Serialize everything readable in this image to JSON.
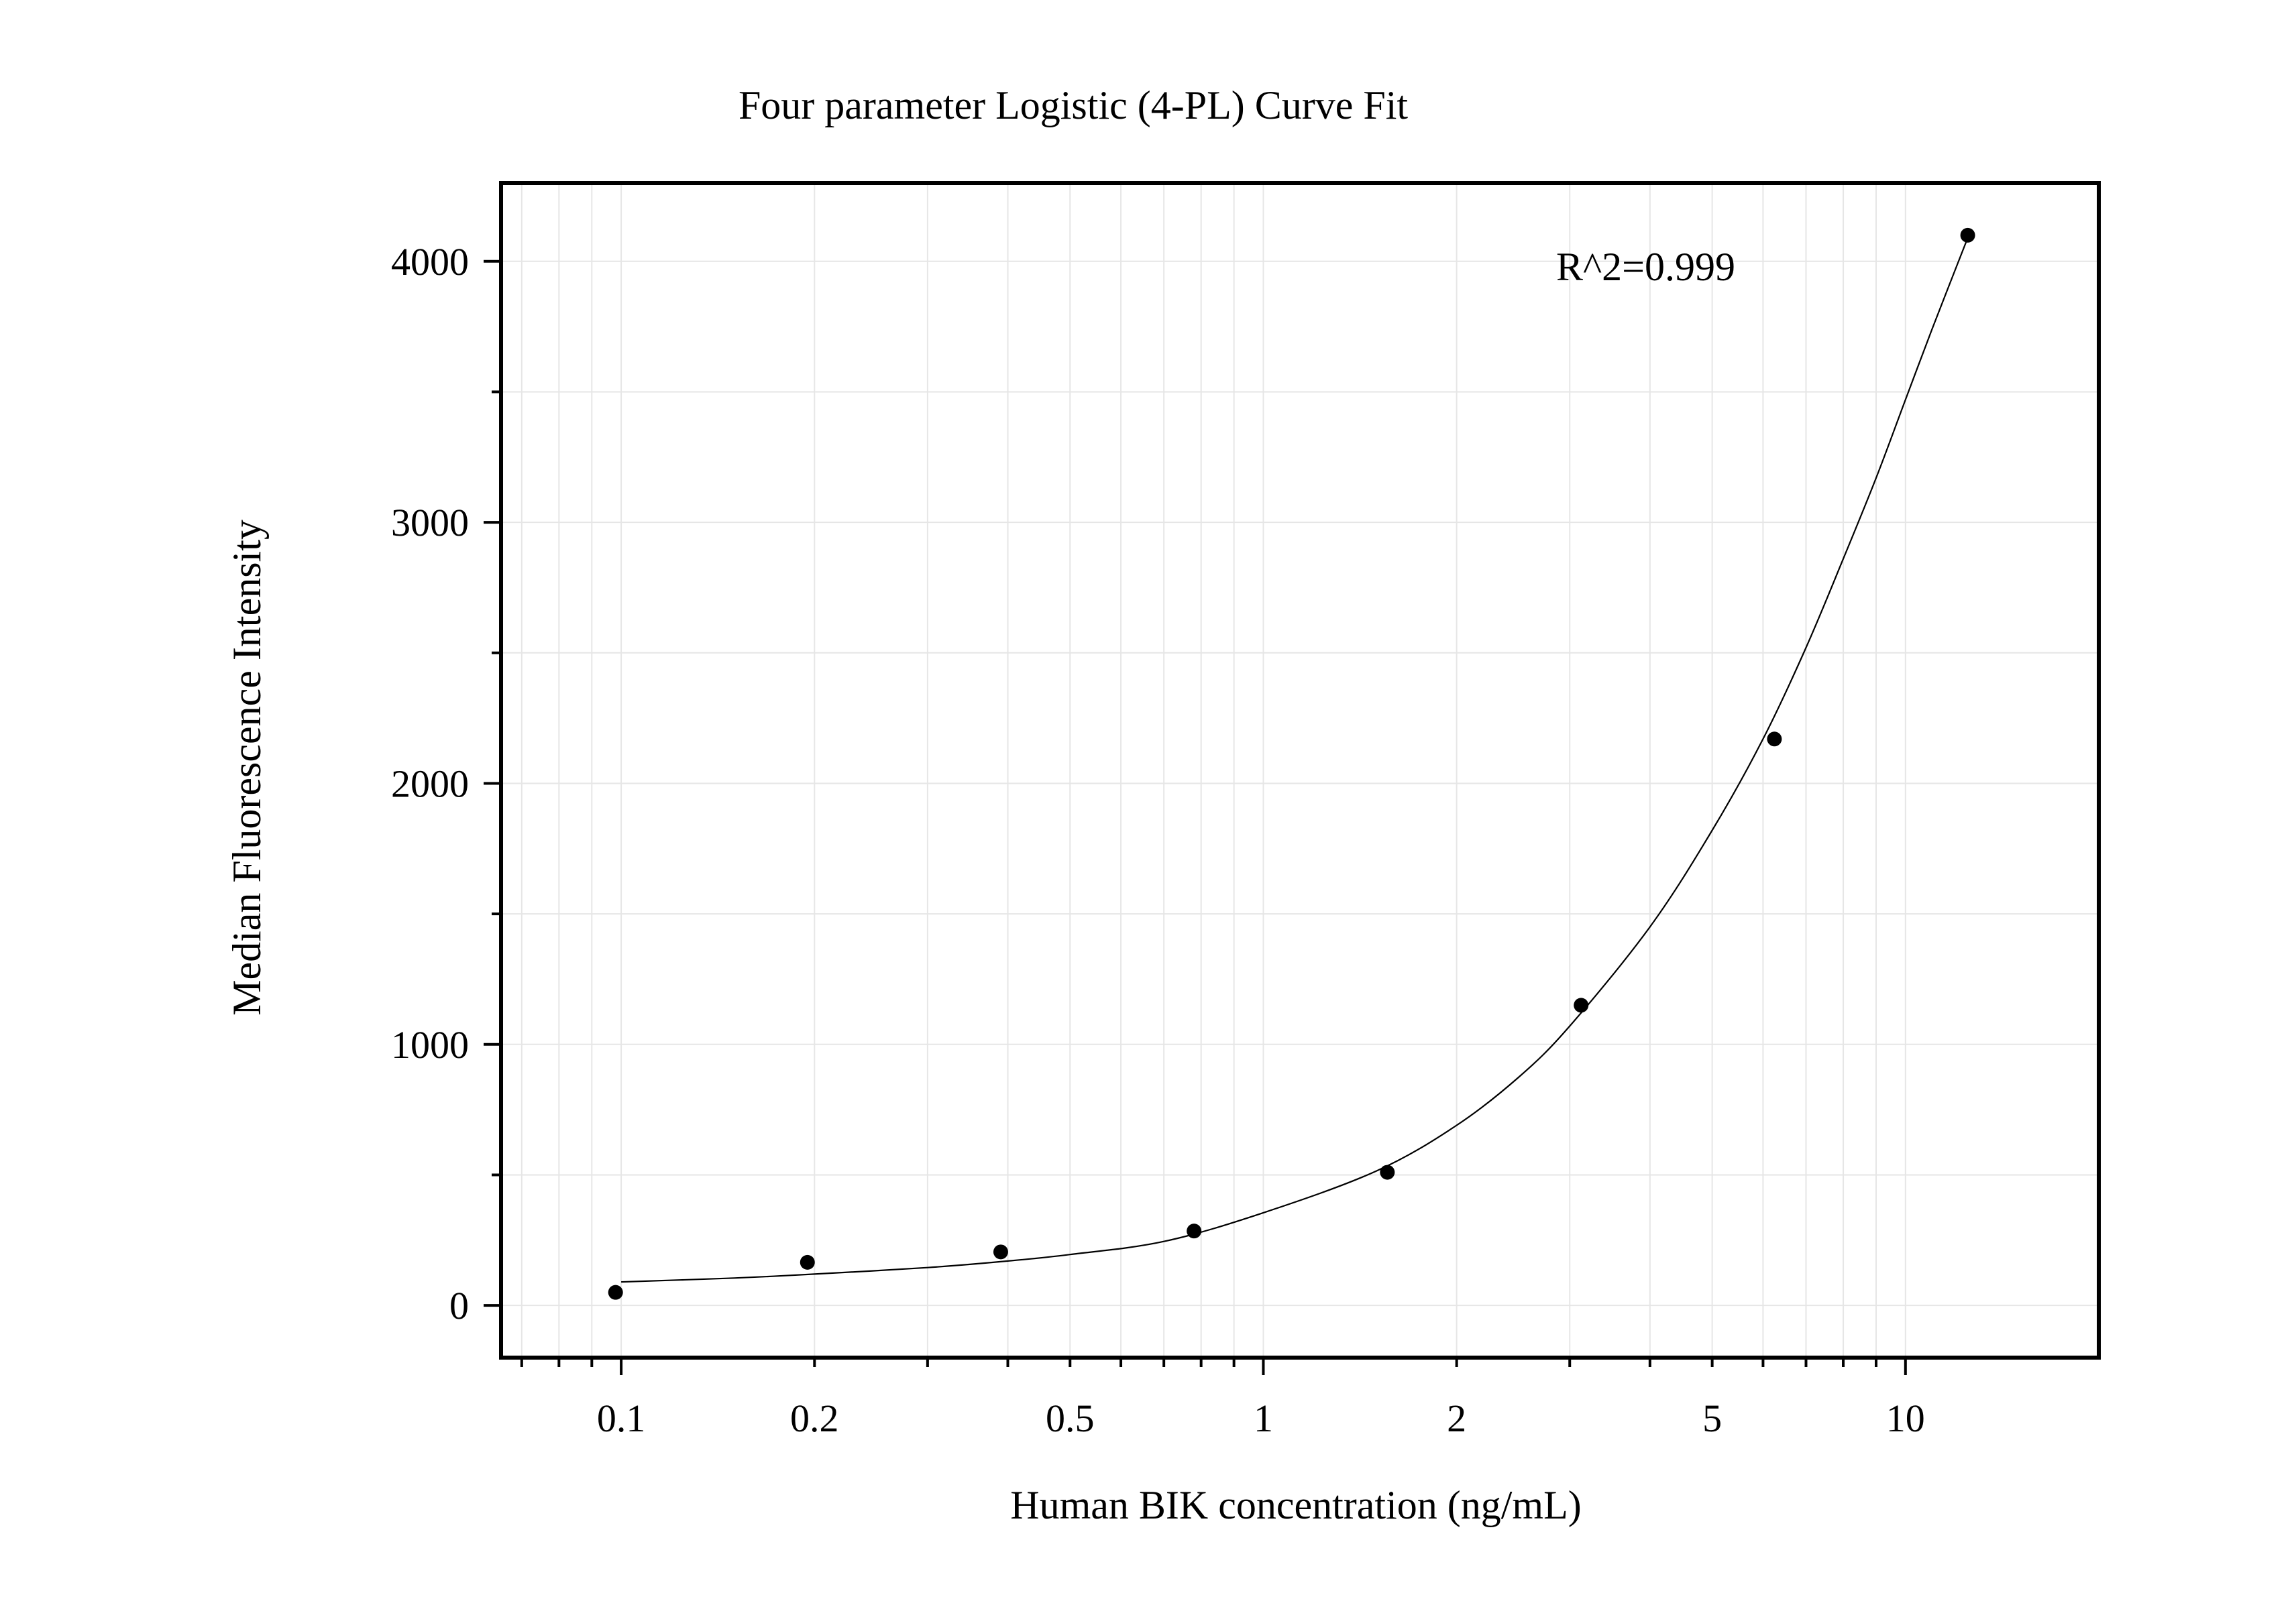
{
  "chart_data": {
    "type": "scatter",
    "title": "Four parameter Logistic (4-PL) Curve Fit",
    "xlabel": "Human BIK concentration (ng/mL)",
    "ylabel": "Median Fluorescence Intensity",
    "x_scale": "log",
    "xlim": [
      0.065,
      20
    ],
    "ylim": [
      -200,
      4300
    ],
    "x_ticks": [
      {
        "value": 0.1,
        "label": "0.1"
      },
      {
        "value": 0.2,
        "label": "0.2"
      },
      {
        "value": 0.5,
        "label": "0.5"
      },
      {
        "value": 1,
        "label": "1"
      },
      {
        "value": 2,
        "label": "2"
      },
      {
        "value": 5,
        "label": "5"
      },
      {
        "value": 10,
        "label": "10"
      }
    ],
    "y_ticks": [
      {
        "value": 0,
        "label": "0"
      },
      {
        "value": 1000,
        "label": "1000"
      },
      {
        "value": 2000,
        "label": "2000"
      },
      {
        "value": 3000,
        "label": "3000"
      },
      {
        "value": 4000,
        "label": "4000"
      }
    ],
    "y_minor_ticks": [
      500,
      1500,
      2500,
      3500
    ],
    "grid": true,
    "annotation": "R^2=0.999",
    "x": [
      0.098,
      0.195,
      0.39,
      0.78,
      1.56,
      3.125,
      6.25,
      12.5
    ],
    "y": [
      50,
      165,
      205,
      285,
      510,
      1150,
      2170,
      4100
    ],
    "fit_curve": {
      "x": [
        0.1,
        0.15,
        0.2,
        0.3,
        0.4,
        0.5,
        0.7,
        1.0,
        1.5,
        2.0,
        2.5,
        3.0,
        4.0,
        5.0,
        6.0,
        7.0,
        8.0,
        9.0,
        10.0,
        11.0,
        12.5
      ],
      "y": [
        90,
        105,
        120,
        145,
        170,
        195,
        245,
        355,
        515,
        690,
        875,
        1070,
        1450,
        1820,
        2170,
        2520,
        2860,
        3170,
        3470,
        3740,
        4090
      ]
    }
  }
}
